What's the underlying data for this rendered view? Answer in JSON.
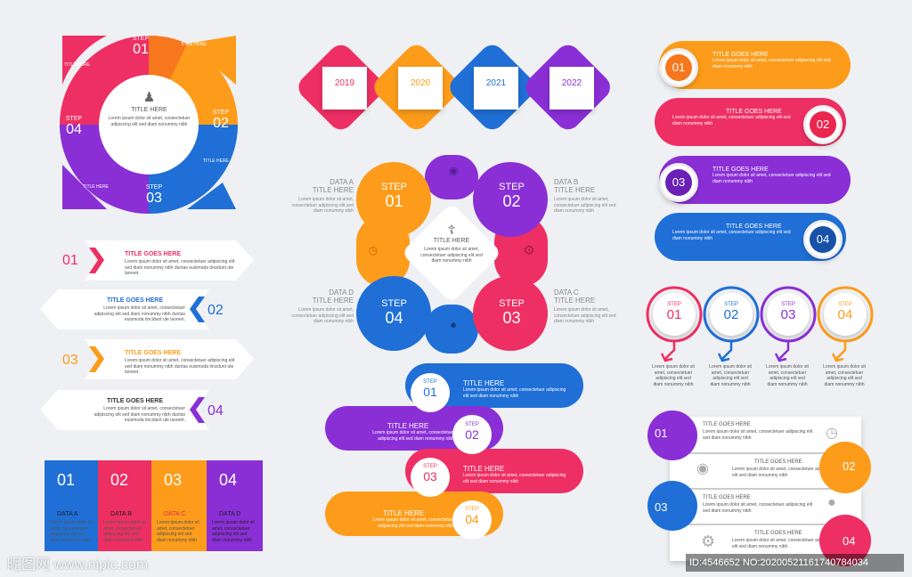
{
  "colors": {
    "pink": "#ee2f63",
    "orange": "#fc9c1a",
    "blue": "#1f6fd6",
    "purple": "#8a2fd6",
    "darkorange": "#f7781c",
    "red": "#e9274f"
  },
  "lorem": "Lorem ipsum dolor sit amet, consectetuer adipiscing elit sed diam nonummy nibh duntas euismoda tincidunt ute laoreet.",
  "lorem_short": "Lorem ipsum dolor sit amet, consectetuer adipiscing elit sed diam nonummy nibh",
  "circle": {
    "step_word": "STEP",
    "steps": [
      "01",
      "02",
      "03",
      "04"
    ],
    "center_title": "TITLE HERE",
    "label": "TITLE HERE"
  },
  "arrows": [
    {
      "num": "01",
      "title": "TITLE GOES HERE"
    },
    {
      "num": "02",
      "title": "TITLE GOES HERE"
    },
    {
      "num": "03",
      "title": "TITLE GOES HERE"
    },
    {
      "num": "04",
      "title": "TITLE GOES HERE"
    }
  ],
  "columns": [
    {
      "num": "01",
      "label": "DATA A"
    },
    {
      "num": "02",
      "label": "DATA B"
    },
    {
      "num": "03",
      "label": "DATA C"
    },
    {
      "num": "04",
      "label": "DATA D"
    }
  ],
  "timeline": {
    "years": [
      "2019",
      "2020",
      "2021",
      "2022"
    ]
  },
  "clover": {
    "step_word": "STEP",
    "steps": [
      "01",
      "02",
      "03",
      "04"
    ],
    "center_title": "TITLE HERE",
    "data": [
      {
        "label": "DATA A",
        "title": "TITLE HERE"
      },
      {
        "label": "DATA B",
        "title": "TITLE HERE"
      },
      {
        "label": "DATA C",
        "title": "TITLE HERE"
      },
      {
        "label": "DATA D",
        "title": "TITLE HERE"
      }
    ]
  },
  "snake": {
    "step_word": "STEP",
    "title": "TITLE HERE",
    "steps": [
      "01",
      "02",
      "03",
      "04"
    ]
  },
  "pills": [
    {
      "num": "01",
      "title": "TITLE GOES HERE"
    },
    {
      "num": "02",
      "title": "TITLE GOES HERE"
    },
    {
      "num": "03",
      "title": "TITLE GOES HERE"
    },
    {
      "num": "04",
      "title": "TITLE GOES HERE"
    }
  ],
  "step_circles": {
    "step_word": "STEP",
    "steps": [
      "01",
      "02",
      "03",
      "04"
    ]
  },
  "bottom_right": {
    "title": "TITLE GOES HERE",
    "nums": [
      "01",
      "02",
      "03",
      "04"
    ]
  },
  "watermark": {
    "left": "昵图网 www.nipic.com",
    "right": "ID:4546652 NO:20200521161740784034"
  }
}
